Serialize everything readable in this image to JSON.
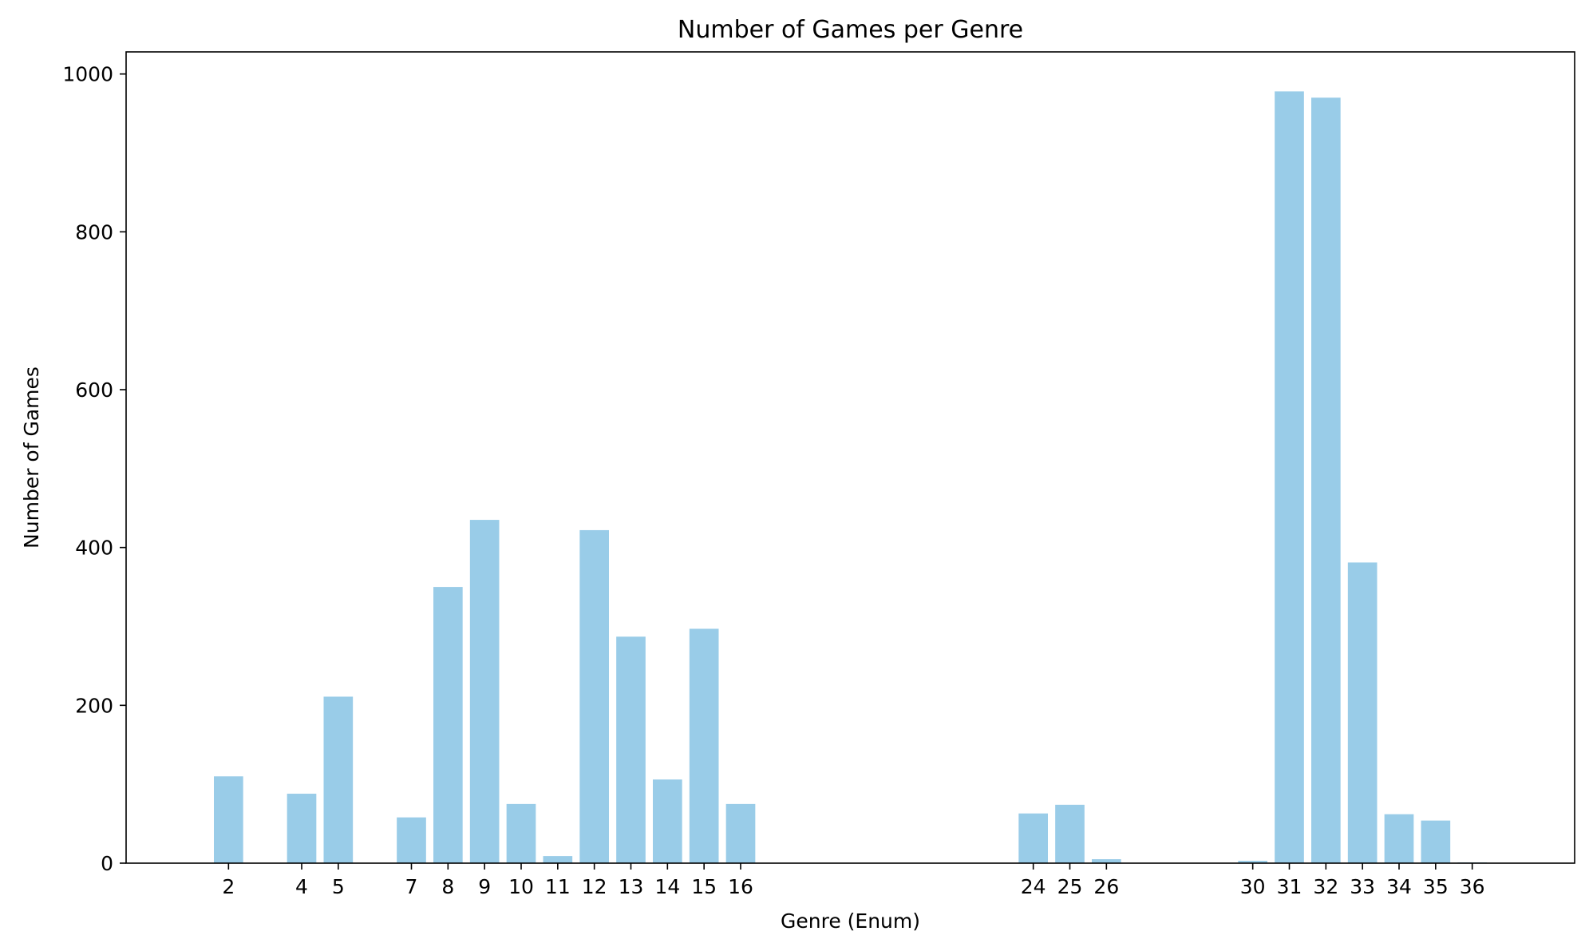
{
  "chart_data": {
    "type": "bar",
    "title": "Number of Games per Genre",
    "xlabel": "Genre (Enum)",
    "ylabel": "Number of Games",
    "x_type": "numeric",
    "xlim": [
      -0.8,
      38.8
    ],
    "ylim": [
      0,
      1028
    ],
    "yticks": [
      0,
      200,
      400,
      600,
      800,
      1000
    ],
    "categories": [
      "2",
      "4",
      "5",
      "7",
      "8",
      "9",
      "10",
      "11",
      "12",
      "13",
      "14",
      "15",
      "16",
      "24",
      "25",
      "26",
      "30",
      "31",
      "32",
      "33",
      "34",
      "35",
      "36"
    ],
    "x": [
      2,
      4,
      5,
      7,
      8,
      9,
      10,
      11,
      12,
      13,
      14,
      15,
      16,
      24,
      25,
      26,
      30,
      31,
      32,
      33,
      34,
      35,
      36
    ],
    "values": [
      110,
      88,
      211,
      58,
      350,
      435,
      75,
      9,
      422,
      287,
      106,
      297,
      75,
      63,
      74,
      5,
      3,
      978,
      970,
      381,
      62,
      54,
      1
    ],
    "bar_color": "#99cce8",
    "grid": false,
    "legend": "none"
  }
}
